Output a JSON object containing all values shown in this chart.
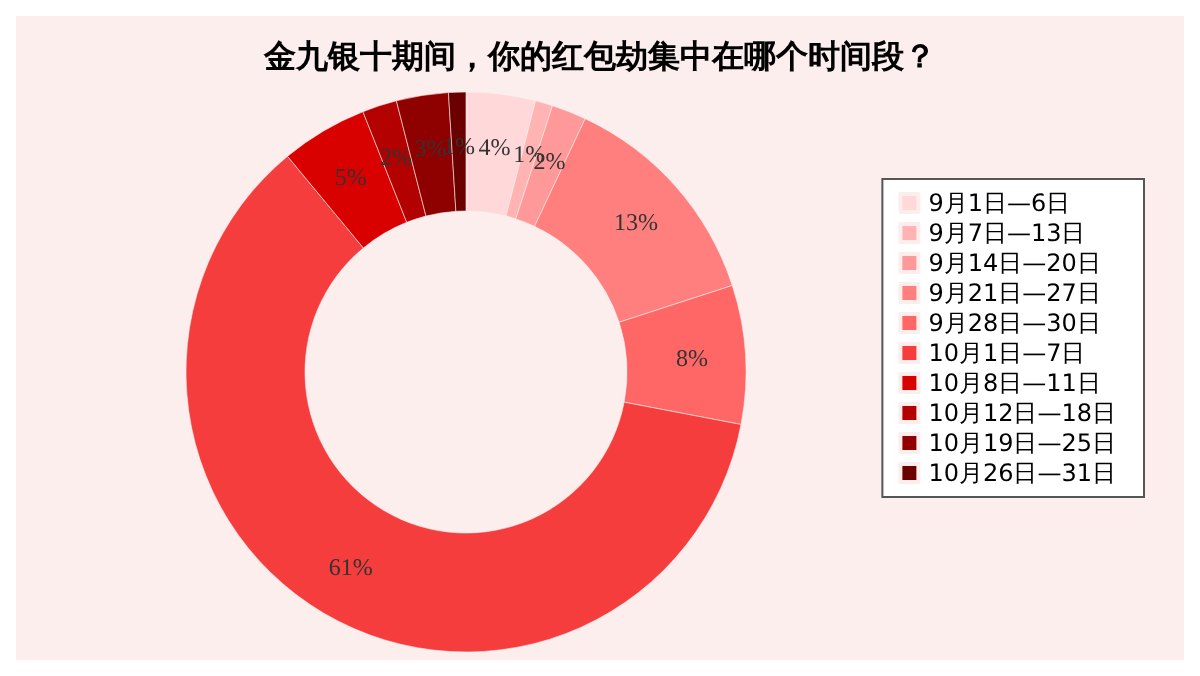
{
  "chart_data": {
    "type": "donut",
    "title": "金九银十期间，你的红包劫集中在哪个时间段？",
    "categories": [
      "9月1日—6日",
      "9月7日—13日",
      "9月14日—20日",
      "9月21日—27日",
      "9月28日—30日",
      "10月1日—7日",
      "10月8日—11日",
      "10月12日—18日",
      "10月19日—25日",
      "10月26日—31日"
    ],
    "values": [
      4,
      1,
      2,
      13,
      8,
      61,
      5,
      2,
      3,
      1
    ],
    "colors": [
      "#ffd9d9",
      "#ffb3b3",
      "#ff9999",
      "#ff7f7f",
      "#ff6666",
      "#f53d3d",
      "#d90000",
      "#b30000",
      "#8f0000",
      "#6b0000"
    ],
    "value_labels": [
      "4%",
      "1%",
      "2%",
      "13%",
      "8%",
      "61%",
      "5%",
      "2%",
      "3%",
      "1%"
    ],
    "legend": "right"
  }
}
